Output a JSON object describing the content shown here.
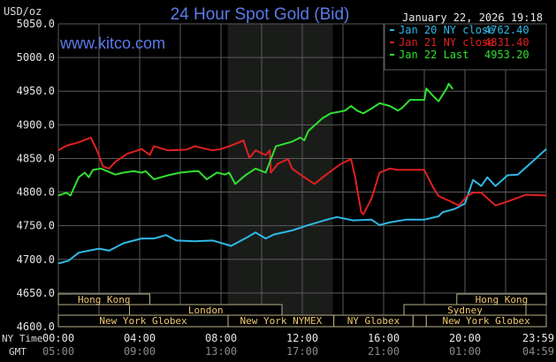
{
  "header": {
    "unit": "USD/oz",
    "title": "24 Hour Spot Gold (Bid)",
    "timestamp": "January 22, 2026 19:18",
    "watermark": "www.kitco.com"
  },
  "colors": {
    "title": "#5b7be8",
    "jan20": "#2fb8e6",
    "jan21": "#e02020",
    "jan22": "#30e030",
    "session_text": "#f0c870",
    "session_border": "#b8b088",
    "grid": "#5a5a5a",
    "shaded": "#1a1c1a"
  },
  "legend": [
    {
      "label": "Jan 20 NY close",
      "value": "4762.40",
      "color": "#2fb8e6"
    },
    {
      "label": "Jan 21 NY close",
      "value": "4831.40",
      "color": "#e02020"
    },
    {
      "label": "Jan 22 Last",
      "value": "4953.20",
      "color": "#30e030"
    }
  ],
  "axis": {
    "y_ticks": [
      "5050.0",
      "5000.0",
      "4950.0",
      "4900.0",
      "4850.0",
      "4800.0",
      "4750.0",
      "4700.0",
      "4650.0",
      "4600.0"
    ],
    "x_row1_label": "NY Time",
    "x_row2_label": "GMT",
    "ny_ticks": [
      "00:00",
      "04:00",
      "08:00",
      "12:00",
      "16:00",
      "20:00",
      "23:59"
    ],
    "gmt_ticks": [
      "05:00",
      "09:00",
      "13:00",
      "17:00",
      "21:00",
      "01:00",
      "04:59"
    ]
  },
  "sessions": [
    {
      "label": "Hong Kong",
      "row": 0,
      "start": 0,
      "end": 4.5
    },
    {
      "label": "Hong Kong",
      "row": 0,
      "start": 19.6,
      "end": 24
    },
    {
      "label": "London",
      "row": 1,
      "start": 3.5,
      "end": 11
    },
    {
      "label": "Sydney",
      "row": 1,
      "start": 17,
      "end": 23
    },
    {
      "label": "New York Globex",
      "row": 2,
      "start": 0,
      "end": 8.35
    },
    {
      "label": "New York NYMEX",
      "row": 2,
      "start": 8.35,
      "end": 13.55
    },
    {
      "label": "NY Globex",
      "row": 2,
      "start": 13.55,
      "end": 17.45
    },
    {
      "label": "",
      "row": 2,
      "start": 17.45,
      "end": 18.1
    },
    {
      "label": "New York Globex",
      "row": 2,
      "start": 18.1,
      "end": 24
    }
  ],
  "chart_data": {
    "type": "line",
    "title": "24 Hour Spot Gold (Bid)",
    "ylabel": "USD/oz",
    "xlabel": "NY Time",
    "ylim": [
      4600,
      5050
    ],
    "xlim_hours": [
      0,
      24
    ],
    "grid": true,
    "shaded_period_hours": [
      8.33,
      13.5
    ],
    "legend_placement": "top-right",
    "series": [
      {
        "name": "Jan 20 NY close 4762.40",
        "color": "#2fb8e6",
        "points": [
          [
            0,
            4694
          ],
          [
            0.5,
            4698
          ],
          [
            1,
            4710
          ],
          [
            1.5,
            4713
          ],
          [
            2,
            4716
          ],
          [
            2.5,
            4713
          ],
          [
            3.2,
            4724
          ],
          [
            4.1,
            4731
          ],
          [
            4.7,
            4731
          ],
          [
            5.3,
            4736
          ],
          [
            5.8,
            4728
          ],
          [
            6.7,
            4727
          ],
          [
            7.6,
            4728
          ],
          [
            8.5,
            4720
          ],
          [
            9.3,
            4733
          ],
          [
            9.7,
            4740
          ],
          [
            10.2,
            4731
          ],
          [
            10.6,
            4737
          ],
          [
            11.5,
            4743
          ],
          [
            12.3,
            4751
          ],
          [
            13.2,
            4759
          ],
          [
            13.7,
            4763
          ],
          [
            14.5,
            4758
          ],
          [
            15.4,
            4759
          ],
          [
            15.8,
            4751
          ],
          [
            16.3,
            4755
          ],
          [
            17.1,
            4759
          ],
          [
            18,
            4759
          ],
          [
            18.7,
            4764
          ],
          [
            18.9,
            4770
          ],
          [
            19.5,
            4775
          ],
          [
            20,
            4783
          ],
          [
            20.4,
            4818
          ],
          [
            20.8,
            4809
          ],
          [
            21.1,
            4822
          ],
          [
            21.5,
            4809
          ],
          [
            22.1,
            4825
          ],
          [
            22.6,
            4826
          ],
          [
            23.2,
            4842
          ],
          [
            24,
            4864
          ]
        ]
      },
      {
        "name": "Jan 21 NY close 4831.40",
        "color": "#e02020",
        "points": [
          [
            0,
            4862
          ],
          [
            0.4,
            4869
          ],
          [
            1,
            4874
          ],
          [
            1.6,
            4881
          ],
          [
            1.9,
            4862
          ],
          [
            2.2,
            4838
          ],
          [
            2.5,
            4835
          ],
          [
            2.8,
            4845
          ],
          [
            3.4,
            4857
          ],
          [
            4.1,
            4864
          ],
          [
            4.5,
            4855
          ],
          [
            4.7,
            4868
          ],
          [
            5.4,
            4862
          ],
          [
            6.3,
            4863
          ],
          [
            6.7,
            4868
          ],
          [
            7.6,
            4862
          ],
          [
            8,
            4864
          ],
          [
            8.4,
            4868
          ],
          [
            8.9,
            4874
          ],
          [
            9.1,
            4877
          ],
          [
            9.4,
            4851
          ],
          [
            9.7,
            4862
          ],
          [
            10.2,
            4855
          ],
          [
            10.4,
            4862
          ],
          [
            10.45,
            4829
          ],
          [
            10.8,
            4842
          ],
          [
            11.3,
            4849
          ],
          [
            11.5,
            4835
          ],
          [
            11.9,
            4826
          ],
          [
            12.6,
            4812
          ],
          [
            13,
            4822
          ],
          [
            13.4,
            4831
          ],
          [
            13.9,
            4842
          ],
          [
            14.4,
            4849
          ],
          [
            14.6,
            4822
          ],
          [
            14.9,
            4770
          ],
          [
            15,
            4767
          ],
          [
            15.4,
            4790
          ],
          [
            15.8,
            4829
          ],
          [
            16.3,
            4835
          ],
          [
            16.7,
            4833
          ],
          [
            18,
            4833
          ],
          [
            18.4,
            4809
          ],
          [
            18.7,
            4794
          ],
          [
            19.3,
            4786
          ],
          [
            19.7,
            4780
          ],
          [
            20.1,
            4794
          ],
          [
            20.4,
            4799
          ],
          [
            20.8,
            4799
          ],
          [
            21.5,
            4780
          ],
          [
            22.1,
            4786
          ],
          [
            23,
            4796
          ],
          [
            24,
            4795
          ]
        ]
      },
      {
        "name": "Jan 22 Last 4953.20",
        "color": "#30e030",
        "points": [
          [
            0,
            4795
          ],
          [
            0.4,
            4799
          ],
          [
            0.6,
            4795
          ],
          [
            1,
            4822
          ],
          [
            1.3,
            4829
          ],
          [
            1.5,
            4822
          ],
          [
            1.7,
            4833
          ],
          [
            2.1,
            4835
          ],
          [
            2.8,
            4826
          ],
          [
            3.2,
            4829
          ],
          [
            3.7,
            4831
          ],
          [
            4.1,
            4829
          ],
          [
            4.3,
            4831
          ],
          [
            4.7,
            4819
          ],
          [
            5.4,
            4825
          ],
          [
            6,
            4829
          ],
          [
            6.7,
            4831
          ],
          [
            6.9,
            4831
          ],
          [
            7.3,
            4819
          ],
          [
            7.8,
            4829
          ],
          [
            8.2,
            4826
          ],
          [
            8.4,
            4829
          ],
          [
            8.7,
            4812
          ],
          [
            9.2,
            4825
          ],
          [
            9.7,
            4835
          ],
          [
            10.2,
            4829
          ],
          [
            10.7,
            4868
          ],
          [
            11.5,
            4875
          ],
          [
            11.9,
            4881
          ],
          [
            12.1,
            4877
          ],
          [
            12.3,
            4891
          ],
          [
            13,
            4910
          ],
          [
            13.4,
            4917
          ],
          [
            14.1,
            4921
          ],
          [
            14.4,
            4928
          ],
          [
            14.7,
            4921
          ],
          [
            15,
            4917
          ],
          [
            15.4,
            4924
          ],
          [
            15.8,
            4932
          ],
          [
            16.3,
            4928
          ],
          [
            16.7,
            4921
          ],
          [
            16.9,
            4925
          ],
          [
            17.3,
            4937
          ],
          [
            18,
            4937
          ],
          [
            18.1,
            4954
          ],
          [
            18.4,
            4944
          ],
          [
            18.7,
            4935
          ],
          [
            19.1,
            4954
          ],
          [
            19.2,
            4961
          ],
          [
            19.4,
            4953
          ]
        ]
      }
    ]
  }
}
